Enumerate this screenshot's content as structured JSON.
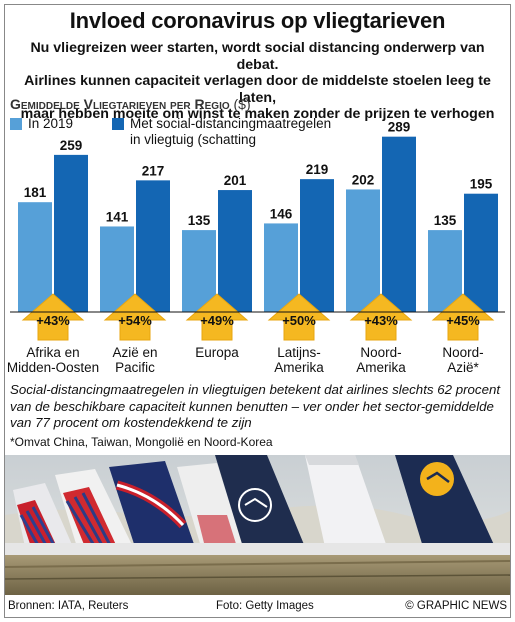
{
  "title": "Invloed coronavirus op vliegtarieven",
  "deck": [
    "Nu vliegreizen weer starten, wordt social distancing onderwerp van debat.",
    "Airlines kunnen capaciteit verlagen door de middelste stoelen leeg te laten,",
    "maar hebben moeite om winst te maken zonder de prijzen te verhogen"
  ],
  "chart_data": {
    "type": "bar",
    "title": "Gemiddelde Vliegtarieven per Regio",
    "unit": "($)",
    "categories": [
      [
        "Afrika en",
        "Midden-Oosten"
      ],
      [
        "Azië en",
        "Pacific"
      ],
      [
        "Europa"
      ],
      [
        "Latijns-",
        "Amerika"
      ],
      [
        "Noord-",
        "Amerika"
      ],
      [
        "Noord-",
        "Azië*"
      ]
    ],
    "series": [
      {
        "name": "In 2019",
        "color": "#56a0d8",
        "values": [
          181,
          141,
          135,
          146,
          202,
          135
        ]
      },
      {
        "name": "Met social-distancingmaatregelen in vliegtuig (schatting",
        "legend_lines": [
          "Met social-distancingmaatregelen",
          "in vliegtuig (schatting"
        ],
        "color": "#1466b3",
        "values": [
          259,
          217,
          201,
          219,
          289,
          195
        ]
      }
    ],
    "increase_labels": [
      "+43%",
      "+54%",
      "+49%",
      "+50%",
      "+43%",
      "+45%"
    ],
    "ylim": [
      0,
      300
    ],
    "arrow_color": "#f5b821",
    "legend_position": "top-left"
  },
  "note": "Social-distancingmaatregelen in vliegtuigen betekent dat airlines slechts 62 procent van de beschikbare capaciteit kunnen benutten – ver onder het sector-gemiddelde van 77 procent om kostendekkend te zijn",
  "footnote": "*Omvat China, Taiwan, Mongolië en Noord-Korea",
  "watermark": "GRAPHIC NEWS",
  "footer": {
    "source": "Bronnen: IATA, Reuters",
    "photo": "Foto: Getty Images",
    "credit": "© GRAPHIC NEWS"
  }
}
